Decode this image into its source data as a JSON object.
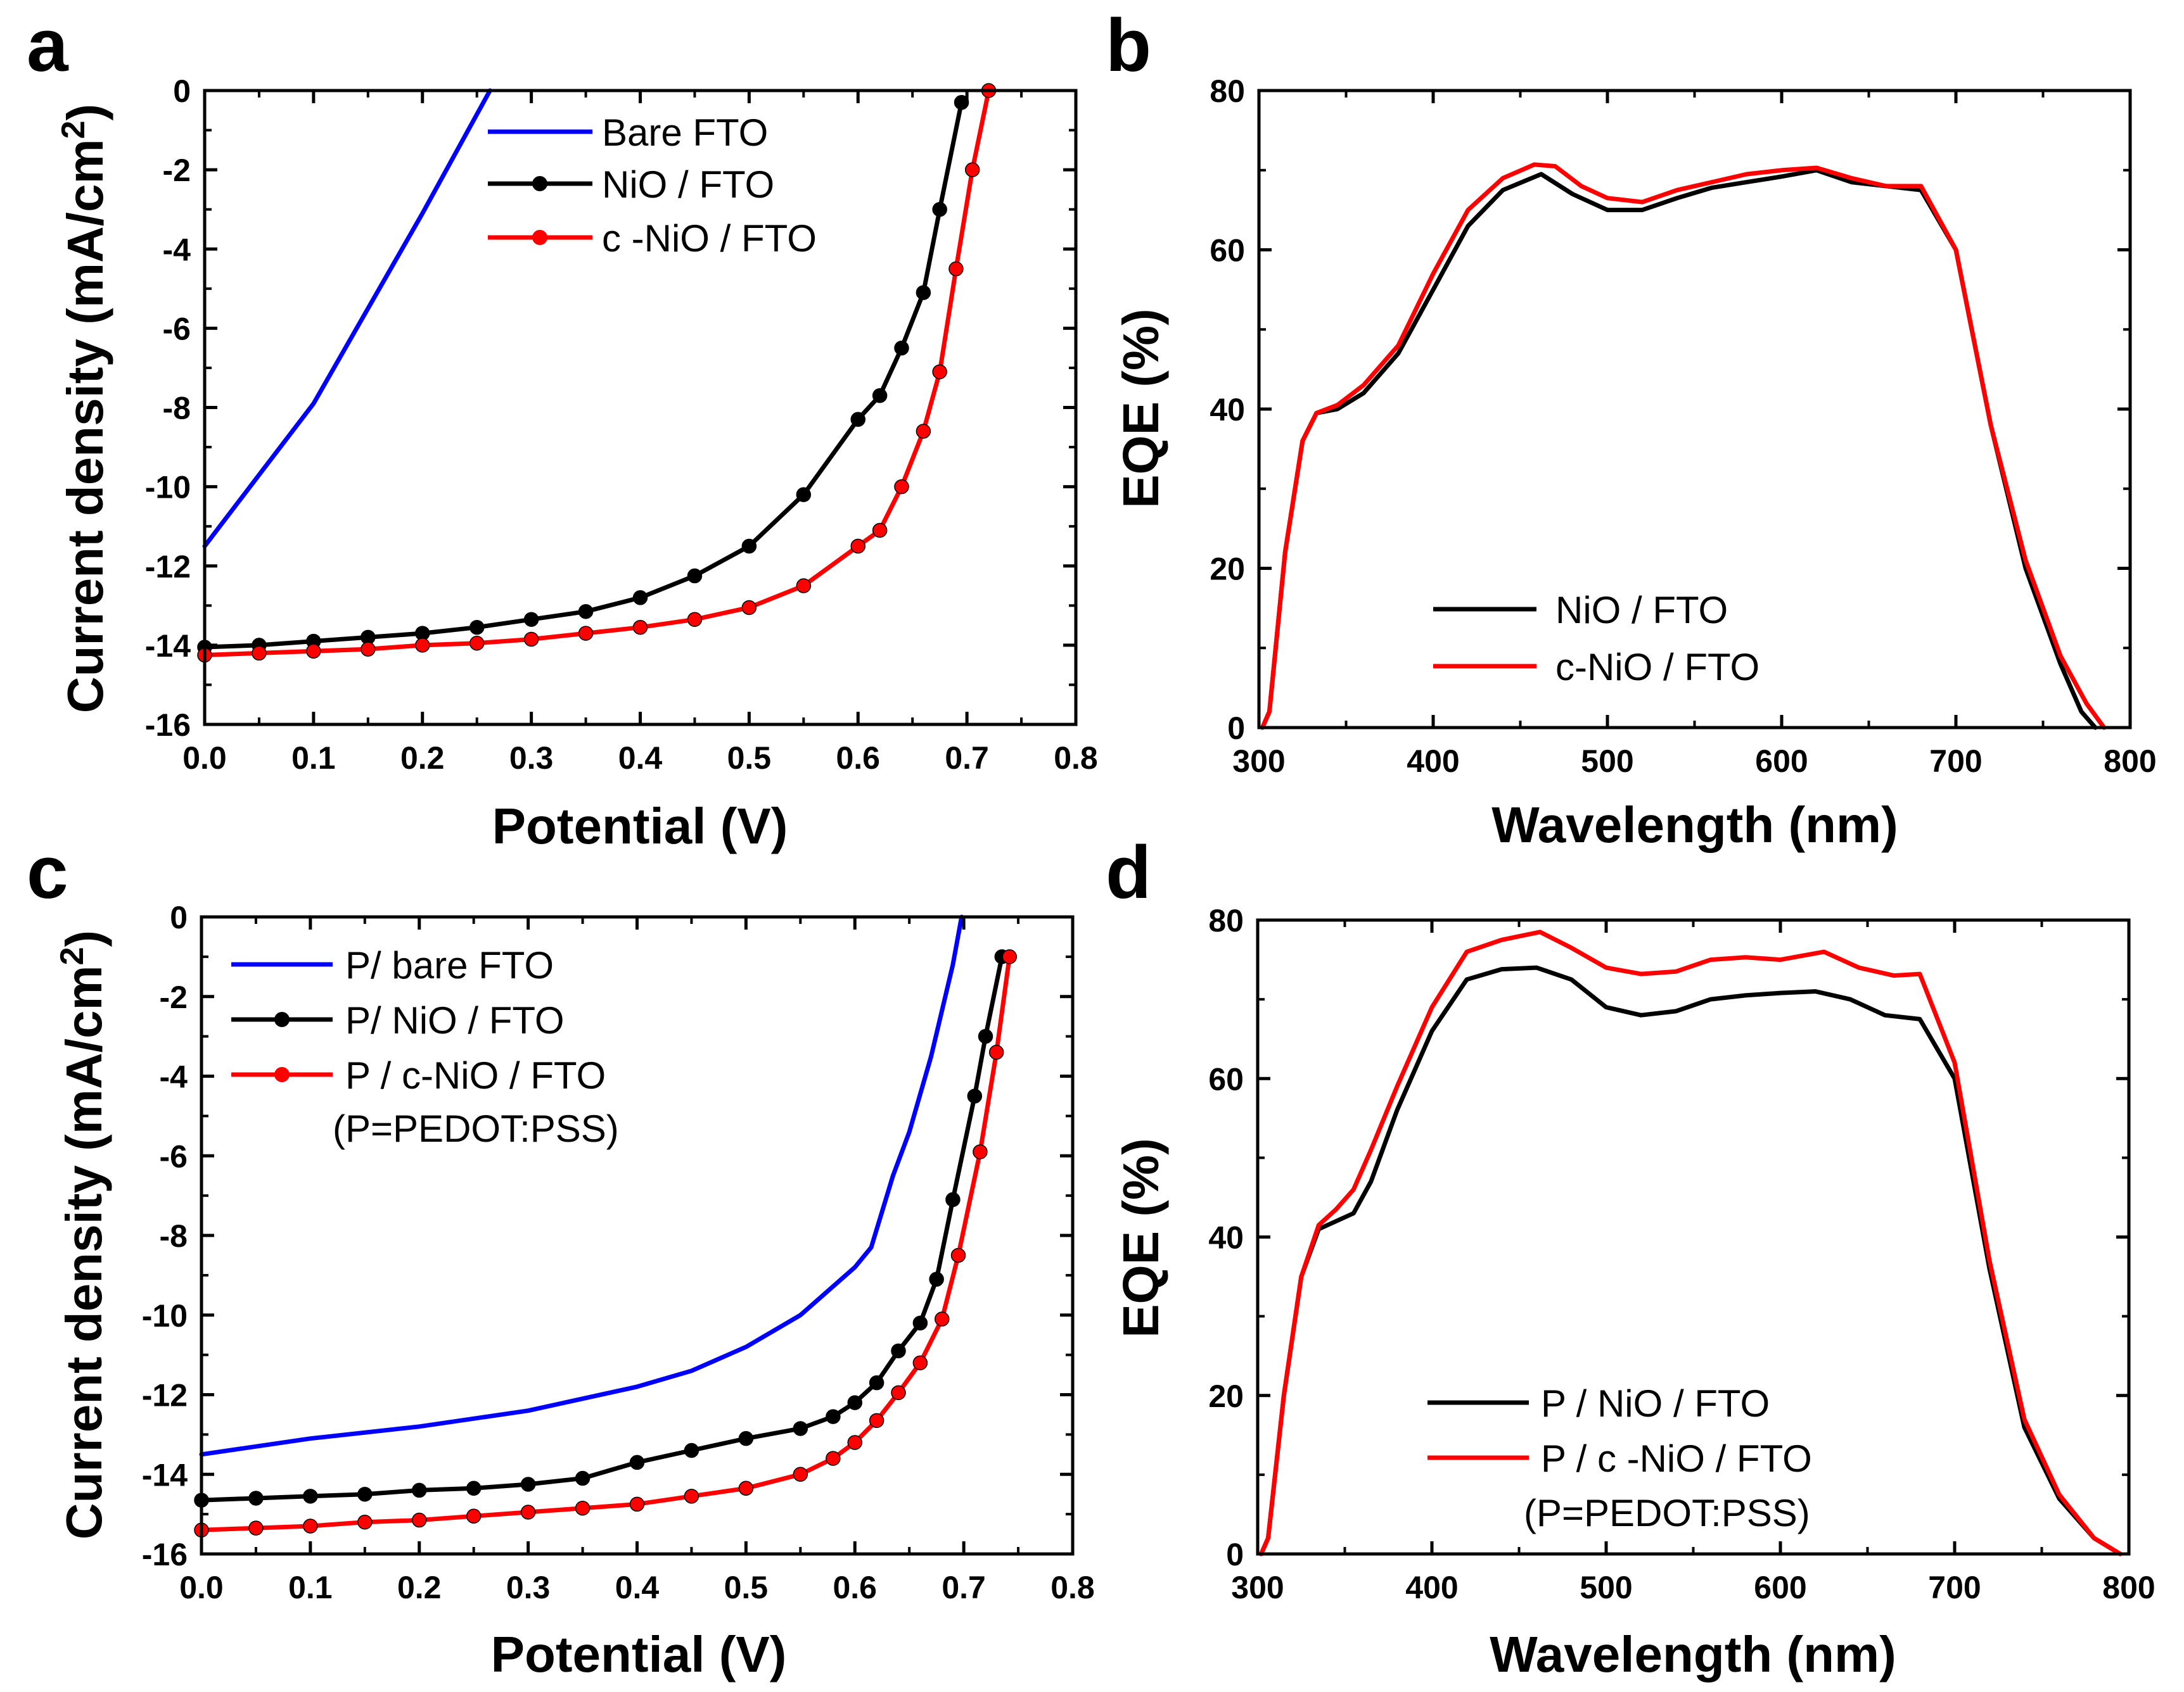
{
  "chart_data": [
    {
      "panel": "a",
      "type": "line",
      "xlabel": "Potential (V)",
      "ylabel": "Current density (mA/cm²)",
      "xlim": [
        0,
        0.8
      ],
      "ylim": [
        -16,
        0
      ],
      "xticks": [
        0.0,
        0.1,
        0.2,
        0.3,
        0.4,
        0.5,
        0.6,
        0.7,
        0.8
      ],
      "yticks": [
        0,
        -2,
        -4,
        -6,
        -8,
        -10,
        -12,
        -14,
        -16
      ],
      "xtick_labels": [
        "0.0",
        "0.1",
        "0.2",
        "0.3",
        "0.4",
        "0.5",
        "0.6",
        "0.7",
        "0.8"
      ],
      "ytick_labels": [
        "0",
        "-2",
        "-4",
        "-6",
        "-8",
        "-10",
        "-12",
        "-14",
        "-16"
      ],
      "legend_position": "top-left",
      "series": [
        {
          "name": "Bare FTO",
          "color": "#0000ff",
          "marker": false,
          "x": [
            0,
            0.05,
            0.1,
            0.15,
            0.2,
            0.24,
            0.262
          ],
          "y": [
            -11.5,
            -9.7,
            -7.9,
            -5.5,
            -3.1,
            -1.1,
            0
          ]
        },
        {
          "name": "NiO / FTO",
          "color": "#000000",
          "marker": true,
          "x": [
            0.0,
            0.05,
            0.1,
            0.15,
            0.2,
            0.25,
            0.3,
            0.35,
            0.4,
            0.45,
            0.5,
            0.55,
            0.6,
            0.62,
            0.64,
            0.66,
            0.675,
            0.695
          ],
          "y": [
            -14.05,
            -14.0,
            -13.9,
            -13.8,
            -13.7,
            -13.55,
            -13.35,
            -13.15,
            -12.8,
            -12.25,
            -11.5,
            -10.2,
            -8.3,
            -7.7,
            -6.5,
            -5.1,
            -3.0,
            -0.3
          ]
        },
        {
          "name": "c -NiO / FTO",
          "color": "#ff0000",
          "marker": true,
          "x": [
            0.0,
            0.05,
            0.1,
            0.15,
            0.2,
            0.25,
            0.3,
            0.35,
            0.4,
            0.45,
            0.5,
            0.55,
            0.6,
            0.62,
            0.64,
            0.66,
            0.675,
            0.69,
            0.705,
            0.72
          ],
          "y": [
            -14.25,
            -14.2,
            -14.15,
            -14.1,
            -14.0,
            -13.95,
            -13.85,
            -13.7,
            -13.55,
            -13.35,
            -13.05,
            -12.5,
            -11.5,
            -11.1,
            -10.0,
            -8.6,
            -7.1,
            -4.5,
            -2.0,
            0
          ]
        }
      ]
    },
    {
      "panel": "b",
      "type": "line",
      "xlabel": "Wavelength (nm)",
      "ylabel": "EQE (%)",
      "xlim": [
        300,
        800
      ],
      "ylim": [
        0,
        80
      ],
      "xticks": [
        300,
        400,
        500,
        600,
        700,
        800
      ],
      "yticks": [
        0,
        20,
        40,
        60,
        80
      ],
      "xtick_labels": [
        "300",
        "400",
        "500",
        "600",
        "700",
        "800"
      ],
      "ytick_labels": [
        "0",
        "20",
        "40",
        "60",
        "80"
      ],
      "legend_position": "bottom-center",
      "series": [
        {
          "name": "NiO / FTO",
          "color": "#000000",
          "x": [
            302,
            306,
            315,
            325,
            333,
            345,
            360,
            380,
            400,
            420,
            440,
            462,
            480,
            500,
            520,
            540,
            560,
            580,
            600,
            620,
            640,
            660,
            680,
            700,
            720,
            740,
            760,
            772,
            780
          ],
          "y": [
            0,
            2,
            22,
            36,
            39.5,
            40,
            42,
            47,
            55,
            63,
            67.5,
            69.5,
            67,
            65,
            65,
            66.5,
            67.8,
            68.5,
            69.2,
            70,
            68.5,
            68,
            67.5,
            60,
            38,
            20,
            8,
            2,
            0
          ]
        },
        {
          "name": "c-NiO / FTO",
          "color": "#ff0000",
          "x": [
            302,
            306,
            315,
            325,
            333,
            345,
            360,
            380,
            400,
            420,
            440,
            458,
            470,
            485,
            500,
            520,
            540,
            560,
            580,
            600,
            620,
            640,
            660,
            680,
            700,
            720,
            740,
            760,
            775,
            785
          ],
          "y": [
            0,
            2,
            22,
            36,
            39.5,
            40.5,
            43,
            48,
            57,
            65,
            69,
            70.7,
            70.5,
            68,
            66.5,
            66,
            67.5,
            68.5,
            69.5,
            70,
            70.3,
            69,
            68,
            68,
            60,
            38,
            21,
            9,
            3,
            0
          ]
        }
      ]
    },
    {
      "panel": "c",
      "type": "line",
      "xlabel": "Potential (V)",
      "ylabel": "Current density (mA/cm²)",
      "xlim": [
        0,
        0.8
      ],
      "ylim": [
        -16,
        0
      ],
      "xticks": [
        0.0,
        0.1,
        0.2,
        0.3,
        0.4,
        0.5,
        0.6,
        0.7,
        0.8
      ],
      "yticks": [
        0,
        -2,
        -4,
        -6,
        -8,
        -10,
        -12,
        -14,
        -16
      ],
      "xtick_labels": [
        "0.0",
        "0.1",
        "0.2",
        "0.3",
        "0.4",
        "0.5",
        "0.6",
        "0.7",
        "0.8"
      ],
      "ytick_labels": [
        "0",
        "-2",
        "-4",
        "-6",
        "-8",
        "-10",
        "-12",
        "-14",
        "-16"
      ],
      "legend_position": "top-left",
      "legend_note": "(P=PEDOT:PSS)",
      "series": [
        {
          "name": "P/ bare FTO",
          "color": "#0000ff",
          "marker": false,
          "x": [
            0.0,
            0.1,
            0.2,
            0.3,
            0.4,
            0.45,
            0.5,
            0.55,
            0.6,
            0.615,
            0.635,
            0.65,
            0.67,
            0.69,
            0.698
          ],
          "y": [
            -13.5,
            -13.1,
            -12.8,
            -12.4,
            -11.8,
            -11.4,
            -10.8,
            -10.0,
            -8.8,
            -8.3,
            -6.5,
            -5.4,
            -3.5,
            -1.2,
            0
          ]
        },
        {
          "name": "P/ NiO / FTO",
          "color": "#000000",
          "marker": true,
          "x": [
            0.0,
            0.05,
            0.1,
            0.15,
            0.2,
            0.25,
            0.3,
            0.35,
            0.4,
            0.45,
            0.5,
            0.55,
            0.58,
            0.6,
            0.62,
            0.64,
            0.66,
            0.675,
            0.69,
            0.71,
            0.72,
            0.735
          ],
          "y": [
            -14.65,
            -14.6,
            -14.55,
            -14.5,
            -14.4,
            -14.35,
            -14.25,
            -14.1,
            -13.7,
            -13.4,
            -13.1,
            -12.85,
            -12.55,
            -12.2,
            -11.7,
            -10.9,
            -10.2,
            -9.1,
            -7.1,
            -4.5,
            -3.0,
            -1.0
          ]
        },
        {
          "name": "P / c-NiO / FTO",
          "color": "#ff0000",
          "marker": true,
          "x": [
            0.0,
            0.05,
            0.1,
            0.15,
            0.2,
            0.25,
            0.3,
            0.35,
            0.4,
            0.45,
            0.5,
            0.55,
            0.58,
            0.6,
            0.62,
            0.64,
            0.66,
            0.68,
            0.695,
            0.715,
            0.73,
            0.742
          ],
          "y": [
            -15.4,
            -15.35,
            -15.3,
            -15.2,
            -15.15,
            -15.05,
            -14.95,
            -14.85,
            -14.75,
            -14.55,
            -14.35,
            -14.0,
            -13.6,
            -13.2,
            -12.65,
            -11.95,
            -11.2,
            -10.1,
            -8.5,
            -5.9,
            -3.4,
            -1.0
          ]
        }
      ]
    },
    {
      "panel": "d",
      "type": "line",
      "xlabel": "Wavelength (nm)",
      "ylabel": "EQE (%)",
      "xlim": [
        300,
        800
      ],
      "ylim": [
        0,
        80
      ],
      "xticks": [
        300,
        400,
        500,
        600,
        700,
        800
      ],
      "yticks": [
        0,
        20,
        40,
        60,
        80
      ],
      "xtick_labels": [
        "300",
        "400",
        "500",
        "600",
        "700",
        "800"
      ],
      "ytick_labels": [
        "0",
        "20",
        "40",
        "60",
        "80"
      ],
      "legend_position": "bottom-center",
      "legend_note": "(P=PEDOT:PSS)",
      "series": [
        {
          "name": "P / NiO / FTO",
          "color": "#000000",
          "x": [
            302,
            306,
            315,
            325,
            335,
            345,
            355,
            365,
            380,
            400,
            420,
            440,
            460,
            480,
            500,
            520,
            540,
            560,
            580,
            600,
            620,
            640,
            660,
            680,
            700,
            720,
            740,
            760,
            780,
            795
          ],
          "y": [
            0,
            2,
            20,
            35,
            41,
            42,
            43,
            47,
            56,
            66,
            72.5,
            73.8,
            74,
            72.5,
            69,
            68,
            68.5,
            70,
            70.5,
            70.8,
            71,
            70,
            68,
            67.5,
            60,
            36,
            16,
            7,
            2,
            0
          ]
        },
        {
          "name": "P / c -NiO / FTO",
          "color": "#ff0000",
          "x": [
            302,
            306,
            315,
            325,
            335,
            345,
            355,
            365,
            380,
            400,
            420,
            440,
            462,
            480,
            500,
            520,
            540,
            560,
            580,
            600,
            625,
            645,
            665,
            680,
            700,
            720,
            740,
            760,
            780,
            795
          ],
          "y": [
            0,
            2,
            20,
            35,
            41.5,
            43.5,
            46,
            51,
            59,
            69,
            76,
            77.5,
            78.5,
            76.5,
            74,
            73.2,
            73.5,
            75,
            75.3,
            75,
            76,
            74,
            73,
            73.2,
            62,
            37,
            17,
            7.5,
            2,
            0
          ]
        }
      ]
    }
  ],
  "panel_letters": [
    "a",
    "b",
    "c",
    "d"
  ]
}
